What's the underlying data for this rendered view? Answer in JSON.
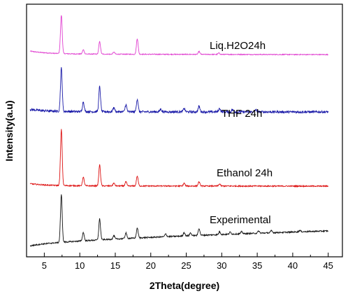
{
  "chart_data": {
    "type": "line",
    "title": "",
    "xlabel": "2Theta(degree)",
    "ylabel": "Intensity(a.u)",
    "xlim": [
      2.5,
      47
    ],
    "xticks": [
      5,
      10,
      15,
      20,
      25,
      30,
      35,
      40,
      45
    ],
    "x_range": [
      3,
      45
    ],
    "grid": false,
    "legend": "none",
    "series": [
      {
        "name": "Liq.H2O24h",
        "color": "#e040d0",
        "noise": 0.6,
        "baseline_start": 1.0,
        "baseline_end": 0.0,
        "low_angle_rise": 4.0,
        "peaks": [
          {
            "x": 7.4,
            "h": 55
          },
          {
            "x": 10.5,
            "h": 6
          },
          {
            "x": 12.8,
            "h": 18
          },
          {
            "x": 14.8,
            "h": 3
          },
          {
            "x": 18.1,
            "h": 22
          },
          {
            "x": 26.8,
            "h": 4
          },
          {
            "x": 29.6,
            "h": 2
          }
        ]
      },
      {
        "name": "THF 24h",
        "color": "#1a1aa8",
        "noise": 1.6,
        "baseline_start": 0.5,
        "baseline_end": 0.0,
        "low_angle_rise": 3.0,
        "peaks": [
          {
            "x": 7.4,
            "h": 62
          },
          {
            "x": 10.5,
            "h": 14
          },
          {
            "x": 12.8,
            "h": 36
          },
          {
            "x": 14.8,
            "h": 6
          },
          {
            "x": 16.5,
            "h": 10
          },
          {
            "x": 18.1,
            "h": 18
          },
          {
            "x": 21.4,
            "h": 4
          },
          {
            "x": 24.7,
            "h": 5
          },
          {
            "x": 26.8,
            "h": 8
          },
          {
            "x": 29.7,
            "h": 5
          },
          {
            "x": 31.5,
            "h": 3
          },
          {
            "x": 34.8,
            "h": 3
          }
        ]
      },
      {
        "name": "Ethanol 24h",
        "color": "#dd1111",
        "noise": 0.8,
        "baseline_start": 0.5,
        "baseline_end": 0.0,
        "low_angle_rise": 3.0,
        "peaks": [
          {
            "x": 7.4,
            "h": 80
          },
          {
            "x": 10.5,
            "h": 12
          },
          {
            "x": 12.8,
            "h": 30
          },
          {
            "x": 14.8,
            "h": 4
          },
          {
            "x": 16.5,
            "h": 6
          },
          {
            "x": 18.1,
            "h": 14
          },
          {
            "x": 24.7,
            "h": 4
          },
          {
            "x": 26.8,
            "h": 6
          },
          {
            "x": 29.7,
            "h": 3
          }
        ]
      },
      {
        "name": "Experimental",
        "color": "#111111",
        "noise": 0.9,
        "baseline_start": 0.0,
        "baseline_end": 22.0,
        "low_angle_rise": 0.0,
        "peaks": [
          {
            "x": 7.4,
            "h": 68
          },
          {
            "x": 10.5,
            "h": 12
          },
          {
            "x": 12.8,
            "h": 30
          },
          {
            "x": 14.8,
            "h": 5
          },
          {
            "x": 16.5,
            "h": 8
          },
          {
            "x": 18.1,
            "h": 14
          },
          {
            "x": 22.1,
            "h": 4
          },
          {
            "x": 24.7,
            "h": 5
          },
          {
            "x": 25.6,
            "h": 4
          },
          {
            "x": 26.8,
            "h": 10
          },
          {
            "x": 29.7,
            "h": 4
          },
          {
            "x": 31.2,
            "h": 3
          },
          {
            "x": 32.8,
            "h": 3
          },
          {
            "x": 35.2,
            "h": 3
          },
          {
            "x": 37.0,
            "h": 3
          },
          {
            "x": 41.0,
            "h": 2
          }
        ]
      }
    ]
  }
}
